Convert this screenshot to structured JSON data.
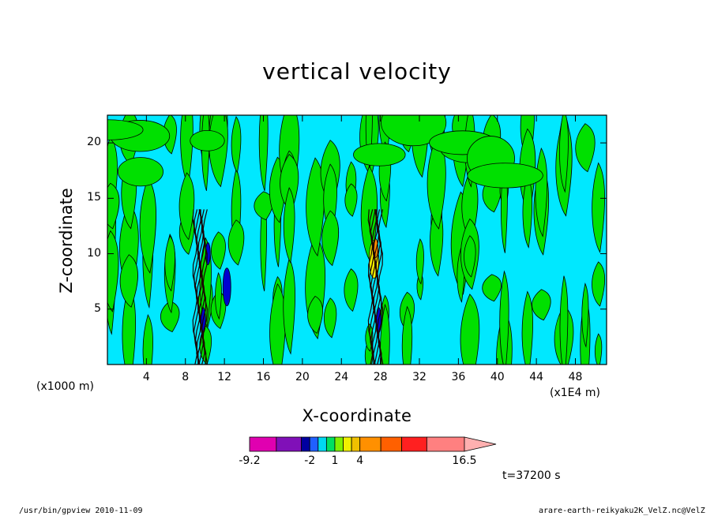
{
  "chart_data": {
    "type": "heatmap",
    "title": "vertical velocity",
    "xlabel": "X-coordinate",
    "ylabel": "Z-coordinate",
    "x_unit_left": "(x1000 m)",
    "x_unit_right": "(x1E4 m)",
    "x_ticks": [
      "4",
      "8",
      "12",
      "16",
      "20",
      "24",
      "28",
      "32",
      "36",
      "40",
      "44",
      "48"
    ],
    "y_ticks": [
      "5",
      "10",
      "15",
      "20"
    ],
    "xlim": [
      0,
      51.2
    ],
    "ylim": [
      0,
      22.5
    ],
    "colorbar": {
      "colors": [
        "#e000b0",
        "#8010b8",
        "#0000a0",
        "#2060ff",
        "#00d8f0",
        "#00e060",
        "#80f000",
        "#f0f000",
        "#f0c000",
        "#ff9000",
        "#ff6000",
        "#ff2020",
        "#ff8080",
        "#ffb0b0"
      ],
      "labels": [
        "-9.2",
        "-2",
        "1",
        "4",
        "16.5"
      ],
      "label_values": [
        -9.2,
        -2,
        1,
        4,
        16.5
      ],
      "range": [
        -9.2,
        16.5
      ]
    },
    "dominant_colors": {
      "background_field": "#00e8ff",
      "positive_weak": "#00e000",
      "negative_strong": "#0000d0",
      "positive_strong": "#f0f000"
    },
    "updraft_columns_x": [
      9.5,
      27.5
    ],
    "updraft_top_z": 14
  },
  "time_label": "t=37200 s",
  "footer_left": "/usr/bin/gpview   2010-11-09",
  "footer_right": "arare-earth-reikyaku2K_VelZ.nc@VelZ"
}
